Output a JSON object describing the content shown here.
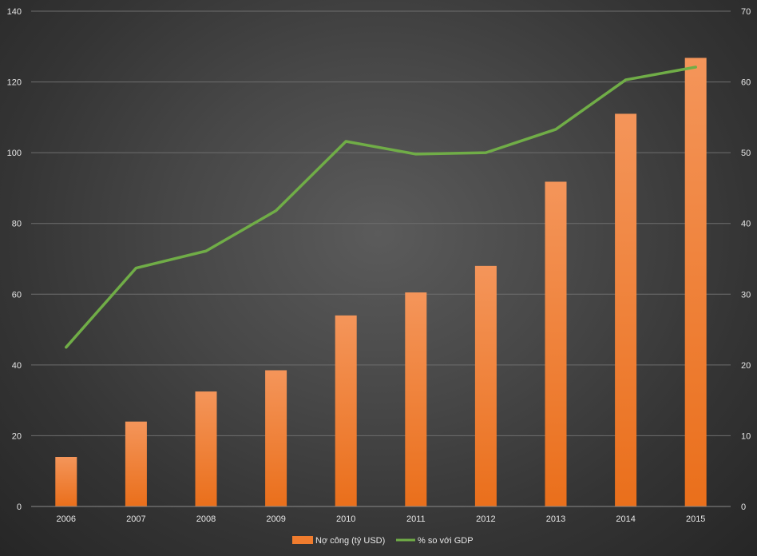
{
  "chart_data": {
    "type": "bar+line",
    "title": "",
    "xlabel": "",
    "ylabel": "",
    "categories": [
      "2006",
      "2007",
      "2008",
      "2009",
      "2010",
      "2011",
      "2012",
      "2013",
      "2014",
      "2015"
    ],
    "ylim_left": [
      0,
      140
    ],
    "yticks_left": [
      "0",
      "20",
      "40",
      "60",
      "80",
      "100",
      "120",
      "140"
    ],
    "ylim_right": [
      0,
      70
    ],
    "yticks_right": [
      "0",
      "10",
      "20",
      "30",
      "40",
      "50",
      "60",
      "70"
    ],
    "grid": true,
    "legend_position": "bottom",
    "series": [
      {
        "name": "Nợ công (tỷ USD)",
        "type": "bar",
        "axis": "left",
        "color": "#f07c2e",
        "values": [
          14,
          24,
          32.5,
          38.5,
          54,
          60.5,
          68,
          91.8,
          111,
          126.8
        ]
      },
      {
        "name": "% so với GDP",
        "type": "line",
        "axis": "right",
        "color": "#70ad47",
        "values": [
          22.5,
          33.7,
          36.1,
          41.8,
          51.6,
          49.8,
          50,
          53.3,
          60.3,
          62.1
        ]
      }
    ]
  }
}
